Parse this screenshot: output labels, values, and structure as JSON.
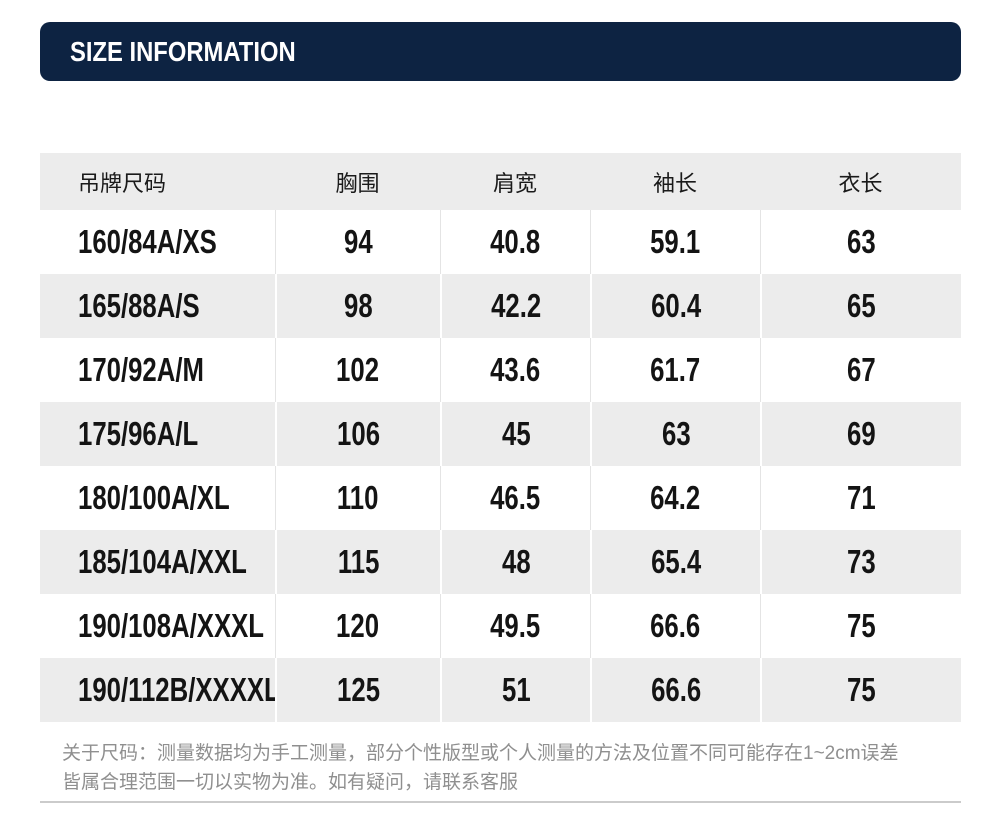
{
  "header": {
    "title": "SIZE INFORMATION"
  },
  "table": {
    "columns": [
      "吊牌尺码",
      "胸围",
      "肩宽",
      "袖长",
      "衣长"
    ],
    "rows": [
      {
        "size": "160/84A/XS",
        "values": [
          "94",
          "40.8",
          "59.1",
          "63"
        ]
      },
      {
        "size": "165/88A/S",
        "values": [
          "98",
          "42.2",
          "60.4",
          "65"
        ]
      },
      {
        "size": "170/92A/M",
        "values": [
          "102",
          "43.6",
          "61.7",
          "67"
        ]
      },
      {
        "size": "175/96A/L",
        "values": [
          "106",
          "45",
          "63",
          "69"
        ]
      },
      {
        "size": "180/100A/XL",
        "values": [
          "110",
          "46.5",
          "64.2",
          "71"
        ]
      },
      {
        "size": "185/104A/XXL",
        "values": [
          "115",
          "48",
          "65.4",
          "73"
        ]
      },
      {
        "size": "190/108A/XXXL",
        "values": [
          "120",
          "49.5",
          "66.6",
          "75"
        ]
      },
      {
        "size": "190/112B/XXXXL",
        "values": [
          "125",
          "51",
          "66.6",
          "75"
        ]
      }
    ]
  },
  "note": {
    "line1": "关于尺码：测量数据均为手工测量，部分个性版型或个人测量的方法及位置不同可能存在1~2cm误差",
    "line2": "皆属合理范围一切以实物为准。如有疑问，请联系客服"
  },
  "colors": {
    "banner_bg": "#0d2342",
    "banner_text": "#ffffff",
    "row_stripe": "#ececec",
    "table_text": "#1a1a1a",
    "note_text": "#8f8f8f",
    "divider": "#cbcbcb"
  }
}
